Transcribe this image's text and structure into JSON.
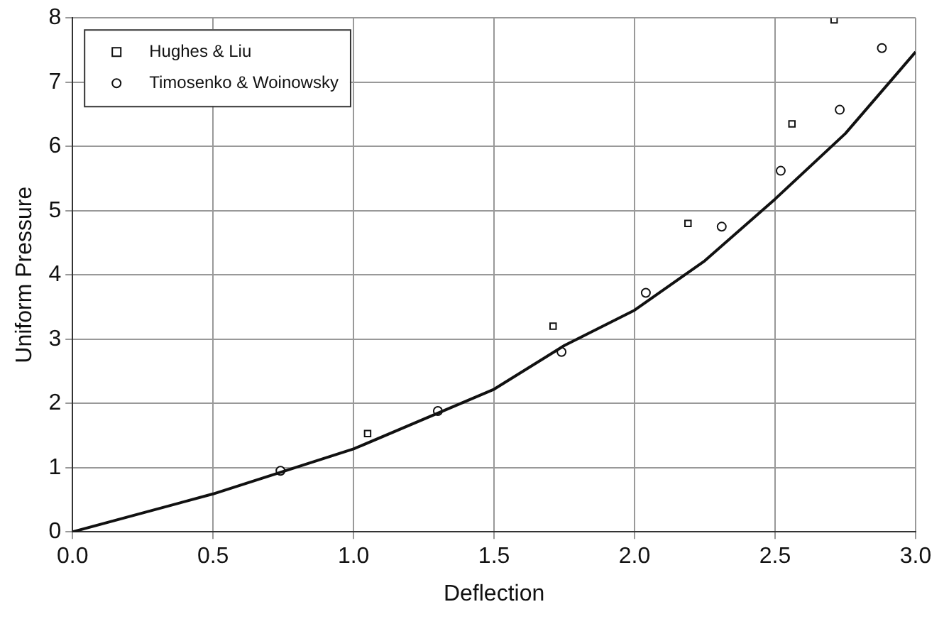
{
  "chart_data": {
    "type": "scatter",
    "xlabel": "Deflection",
    "ylabel": "Uniform Pressure",
    "xlim": [
      0,
      3
    ],
    "ylim": [
      0,
      8
    ],
    "xticks": [
      {
        "value": 0,
        "label": "0.0"
      },
      {
        "value": 0.5,
        "label": "0.5"
      },
      {
        "value": 1,
        "label": "1.0"
      },
      {
        "value": 1.5,
        "label": "1.5"
      },
      {
        "value": 2,
        "label": "2.0"
      },
      {
        "value": 2.5,
        "label": "2.5"
      },
      {
        "value": 3,
        "label": "3.0"
      }
    ],
    "yticks": [
      0,
      1,
      2,
      3,
      4,
      5,
      6,
      7,
      8
    ],
    "grid": true,
    "legend": "top left",
    "series": [
      {
        "type": "line",
        "color": "#111111",
        "marker": "none",
        "x": [
          0,
          0.5,
          1,
          1.5,
          1.75,
          2,
          2.25,
          2.5,
          2.75,
          3
        ],
        "values": [
          0,
          0.59,
          1.29,
          2.22,
          2.9,
          3.45,
          4.22,
          5.18,
          6.2,
          7.47
        ]
      },
      {
        "name": "Hughes & Liu",
        "color": "#111111",
        "marker": "square",
        "x": [
          1.05,
          1.71,
          2.19,
          2.56,
          2.71
        ],
        "values": [
          1.53,
          3.2,
          4.8,
          6.35,
          7.97
        ]
      },
      {
        "name": "Timosenko & Woinowsky",
        "color": "#111111",
        "marker": "circle",
        "x": [
          0.74,
          1.3,
          1.74,
          2.04,
          2.31,
          2.52,
          2.73,
          2.88
        ],
        "values": [
          0.95,
          1.88,
          2.8,
          3.72,
          4.75,
          5.62,
          6.57,
          7.53
        ]
      }
    ]
  }
}
